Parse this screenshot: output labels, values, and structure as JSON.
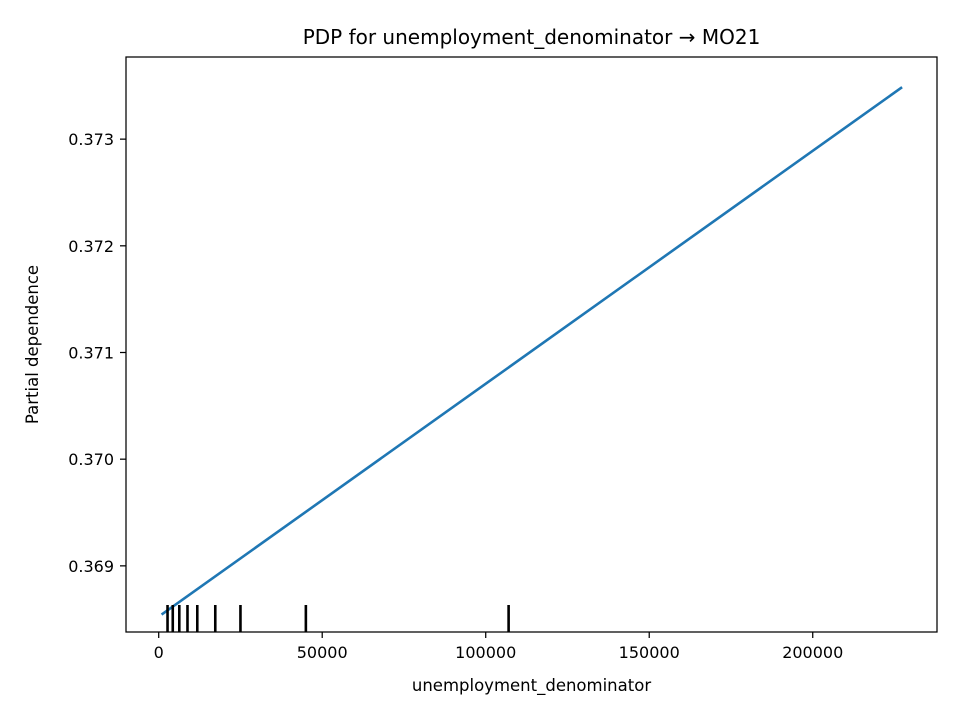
{
  "chart_data": {
    "type": "line",
    "title": "PDP for unemployment_denominator → MO21",
    "xlabel": "unemployment_denominator",
    "ylabel": "Partial dependence",
    "xlim": [
      -10000,
      238000
    ],
    "ylim": [
      0.36838,
      0.37377
    ],
    "x_ticks": [
      0,
      50000,
      100000,
      150000,
      200000
    ],
    "x_tick_labels": [
      "0",
      "50000",
      "100000",
      "150000",
      "200000"
    ],
    "y_ticks": [
      0.369,
      0.37,
      0.371,
      0.372,
      0.373
    ],
    "y_tick_labels": [
      "0.369",
      "0.370",
      "0.371",
      "0.372",
      "0.373"
    ],
    "grid": false,
    "series": [
      {
        "color": "#1f77b4",
        "x": [
          1200,
          227000
        ],
        "y": [
          0.36855,
          0.37348
        ]
      }
    ],
    "rug": {
      "color": "#000000",
      "x": [
        2700,
        4300,
        6300,
        8800,
        11800,
        17300,
        25000,
        45000,
        107000
      ]
    }
  }
}
